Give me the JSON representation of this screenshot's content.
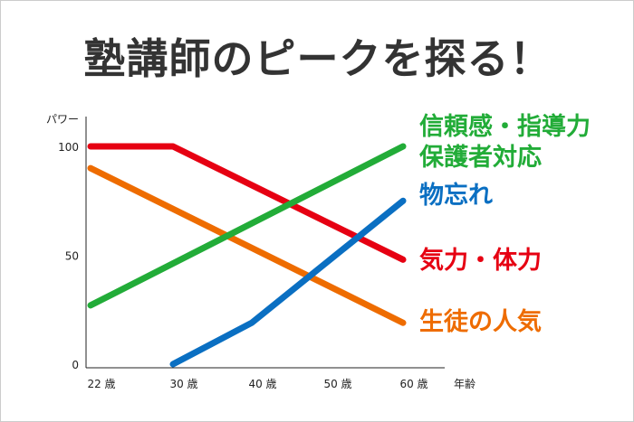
{
  "chart_data": {
    "type": "line",
    "title": "塾講師のピークを探る！",
    "xlabel": "年齢",
    "ylabel": "パワー",
    "categories": [
      "22 歳",
      "30 歳",
      "40 歳",
      "50 歳",
      "60 歳"
    ],
    "x": [
      22,
      30,
      40,
      50,
      60
    ],
    "yticks": [
      "0",
      "50",
      "100"
    ],
    "ylim": [
      0,
      100
    ],
    "grid": false,
    "series": [
      {
        "name": "気力・体力",
        "color": "#e60012",
        "x": [
          22,
          30,
          60
        ],
        "values": [
          100,
          100,
          48
        ]
      },
      {
        "name": "生徒の人気",
        "color": "#ee6c00",
        "x": [
          22,
          60
        ],
        "values": [
          90,
          19
        ]
      },
      {
        "name": "信頼感・指導力 保護者対応",
        "lines": [
          "信頼感・指導力",
          "保護者対応"
        ],
        "color": "#22ac38",
        "x": [
          22,
          60
        ],
        "values": [
          27,
          100
        ]
      },
      {
        "name": "物忘れ",
        "color": "#0a6fc2",
        "x": [
          30,
          40,
          60
        ],
        "values": [
          0,
          19,
          75
        ]
      }
    ]
  }
}
